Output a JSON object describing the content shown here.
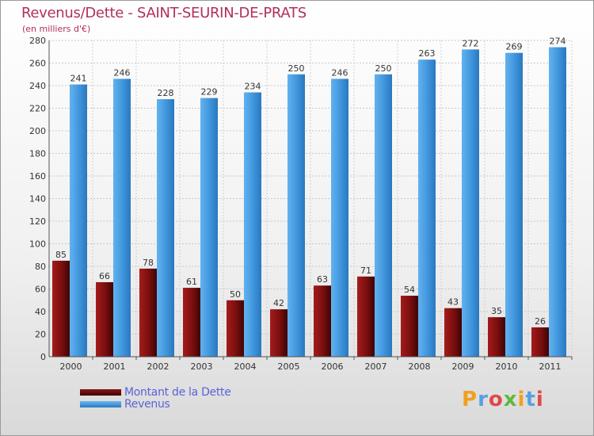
{
  "chart_data": {
    "type": "bar",
    "title": "Revenus/Dette - SAINT-SEURIN-DE-PRATS",
    "subtitle": "(en milliers d'€)",
    "categories": [
      "2000",
      "2001",
      "2002",
      "2003",
      "2004",
      "2005",
      "2006",
      "2007",
      "2008",
      "2009",
      "2010",
      "2011"
    ],
    "series": [
      {
        "name": "Montant de la Dette",
        "color": "#6b0a0a",
        "values": [
          85,
          66,
          78,
          61,
          50,
          42,
          63,
          71,
          54,
          43,
          35,
          26
        ]
      },
      {
        "name": "Revenus",
        "color": "#3d8fd8",
        "values": [
          241,
          246,
          228,
          229,
          234,
          250,
          246,
          250,
          263,
          272,
          269,
          274
        ]
      }
    ],
    "ylim": [
      0,
      280
    ],
    "yticks": [
      0,
      20,
      40,
      60,
      80,
      100,
      120,
      140,
      160,
      180,
      200,
      220,
      240,
      260,
      280
    ],
    "xlabel": "",
    "ylabel": "",
    "grid": true,
    "legend_position": "bottom-left"
  },
  "logo": {
    "letters": [
      "P",
      "r",
      "o",
      "x",
      "i",
      "t",
      "i"
    ],
    "colors": [
      "#f0a020",
      "#5aa0e0",
      "#e04848",
      "#60b840",
      "#f0a020",
      "#5aa0e0",
      "#e04848"
    ]
  }
}
